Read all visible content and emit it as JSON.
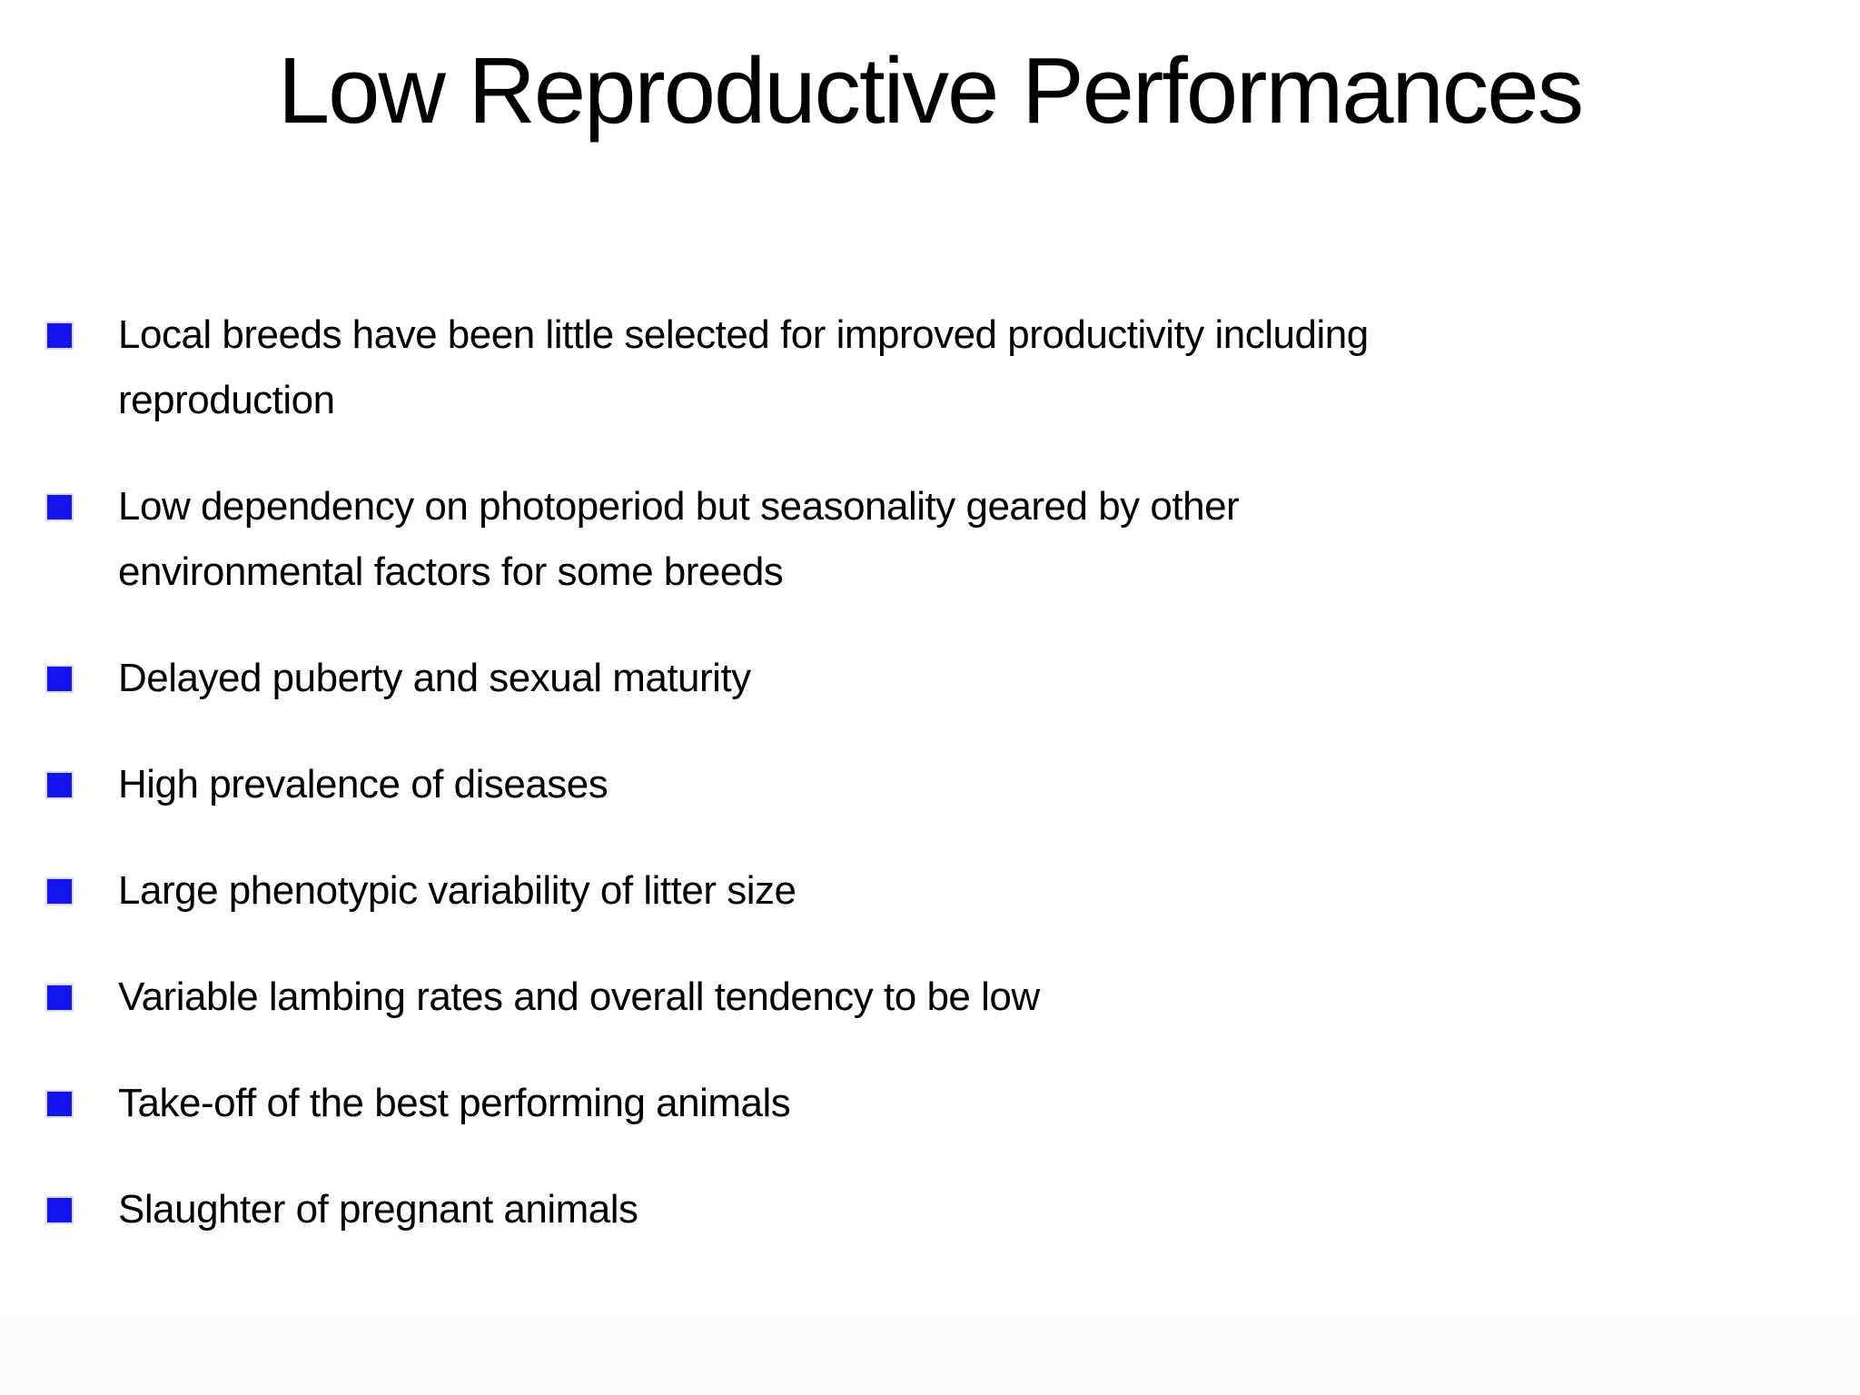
{
  "slide": {
    "title": "Low Reproductive Performances",
    "colors": {
      "background": "#ffffff",
      "text": "#000000",
      "bullet_square": "#1414ee"
    },
    "bullets": [
      {
        "lines": [
          "Local breeds have been little selected for improved productivity including",
          "reproduction"
        ]
      },
      {
        "lines": [
          "Low dependency on photoperiod but seasonality geared by other",
          "environmental factors for some breeds"
        ]
      },
      {
        "lines": [
          "Delayed puberty and sexual maturity"
        ]
      },
      {
        "lines": [
          "High prevalence of diseases"
        ]
      },
      {
        "lines": [
          "Large phenotypic variability of litter size"
        ]
      },
      {
        "lines": [
          "Variable lambing rates and overall tendency to be low"
        ]
      },
      {
        "lines": [
          "Take-off of the best performing animals"
        ]
      },
      {
        "lines": [
          "Slaughter of pregnant animals"
        ]
      }
    ]
  }
}
